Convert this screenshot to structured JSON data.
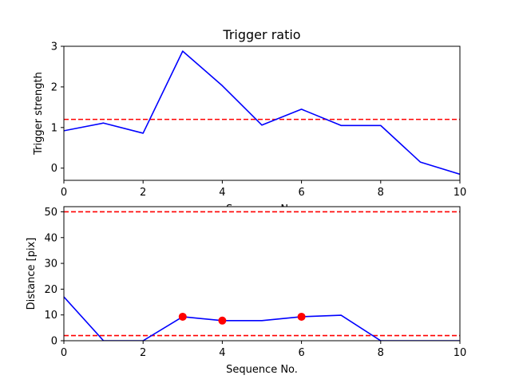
{
  "chart_data": [
    {
      "type": "line",
      "title": "Trigger ratio",
      "xlabel": "Sequence No.",
      "ylabel": "Trigger strength",
      "xlim": [
        0,
        10
      ],
      "ylim": [
        -0.3,
        3.0
      ],
      "xticks": [
        0,
        2,
        4,
        6,
        8,
        10
      ],
      "yticks": [
        0,
        1,
        2,
        3
      ],
      "grid": false,
      "series": [
        {
          "x": [
            0,
            1,
            2,
            3,
            4,
            5,
            6,
            7,
            8,
            9,
            10
          ],
          "values": [
            0.92,
            1.11,
            0.86,
            2.88,
            2.03,
            1.06,
            1.45,
            1.05,
            1.05,
            0.15,
            -0.15
          ],
          "color": "#0000ff"
        }
      ],
      "reference_lines": [
        {
          "orientation": "horizontal",
          "y": 1.2,
          "color": "#ff0000",
          "style": "dashed"
        }
      ]
    },
    {
      "type": "line",
      "title": "",
      "xlabel": "Sequence No.",
      "ylabel": "Distance [pix]",
      "xlim": [
        0,
        10
      ],
      "ylim": [
        0,
        52
      ],
      "xticks": [
        0,
        2,
        4,
        6,
        8,
        10
      ],
      "yticks": [
        0,
        10,
        20,
        30,
        40,
        50
      ],
      "grid": false,
      "series": [
        {
          "x": [
            0,
            1,
            2,
            3,
            4,
            5,
            6,
            7,
            8,
            9,
            10
          ],
          "values": [
            17,
            0,
            0,
            9.3,
            7.8,
            7.8,
            9.3,
            9.9,
            0,
            0,
            0
          ],
          "color": "#0000ff"
        }
      ],
      "markers": [
        {
          "x": 3,
          "y": 9.3,
          "color": "#ff0000"
        },
        {
          "x": 4,
          "y": 7.8,
          "color": "#ff0000"
        },
        {
          "x": 6,
          "y": 9.3,
          "color": "#ff0000"
        }
      ],
      "reference_lines": [
        {
          "orientation": "horizontal",
          "y": 50,
          "color": "#ff0000",
          "style": "dashed"
        },
        {
          "orientation": "horizontal",
          "y": 2,
          "color": "#ff0000",
          "style": "dashed"
        }
      ]
    }
  ]
}
